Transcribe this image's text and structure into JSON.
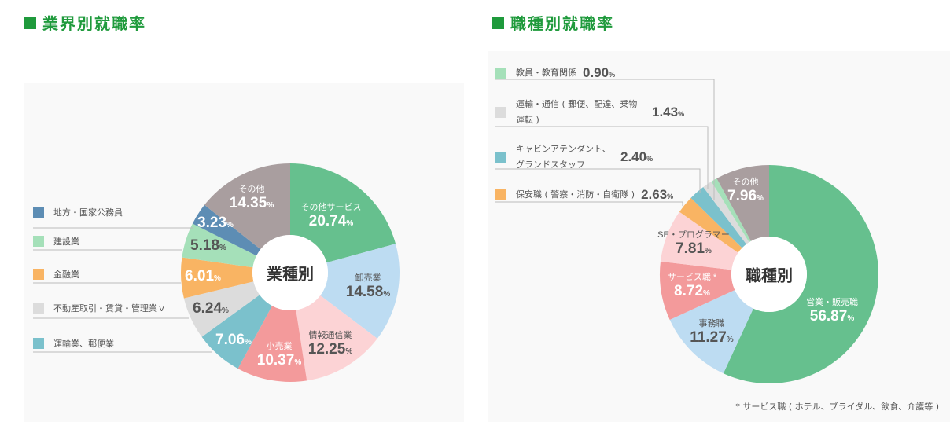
{
  "chart_data": [
    {
      "type": "pie",
      "title": "業界別就職率",
      "center_label": "業種別",
      "unit": "%",
      "slices": [
        {
          "label": "その他サービス",
          "value": 20.74,
          "color": "#66c08e"
        },
        {
          "label": "卸売業",
          "value": 14.58,
          "color": "#bddcf2"
        },
        {
          "label": "情報通信業",
          "value": 12.25,
          "color": "#fcd3d5"
        },
        {
          "label": "小売業",
          "value": 10.37,
          "color": "#f39a9b"
        },
        {
          "label": "運輸業、郵便業",
          "value": 7.06,
          "color": "#7bc1cc"
        },
        {
          "label": "不動産取引・賃貸・管理業ｖ",
          "value": 6.24,
          "color": "#dcdcdc"
        },
        {
          "label": "金融業",
          "value": 6.01,
          "color": "#f9b463"
        },
        {
          "label": "建設業",
          "value": 5.18,
          "color": "#a5e0b9"
        },
        {
          "label": "地方・国家公務員",
          "value": 3.23,
          "color": "#5d8db4"
        },
        {
          "label": "その他",
          "value": 14.35,
          "color": "#a99e9f"
        }
      ]
    },
    {
      "type": "pie",
      "title": "職種別就職率",
      "center_label": "職種別",
      "unit": "%",
      "note": "* サービス職 ( ホテル、ブライダル、飲食、介護等 )",
      "slices": [
        {
          "label": "営業・販売職",
          "value": 56.87,
          "color": "#66c08e"
        },
        {
          "label": "事務職",
          "value": 11.27,
          "color": "#bddcf2"
        },
        {
          "label": "サービス職 *",
          "value": 8.72,
          "color": "#f39a9b"
        },
        {
          "label": "SE・プログラマー",
          "value": 7.81,
          "color": "#fcd3d5"
        },
        {
          "label": "保安職 ( 警察・消防・自衛隊 )",
          "value": 2.63,
          "color": "#f9b463"
        },
        {
          "label": "キャビンアテンダント、グランドスタッフ",
          "value": 2.4,
          "color": "#7bc1cc"
        },
        {
          "label": "運輸・通信 ( 郵便、配達、乗物運転 )",
          "value": 1.43,
          "color": "#dcdcdc"
        },
        {
          "label": "教員・教育関係",
          "value": 0.9,
          "color": "#a5e0b9"
        },
        {
          "label": "その他",
          "value": 7.96,
          "color": "#a99e9f"
        }
      ]
    }
  ]
}
